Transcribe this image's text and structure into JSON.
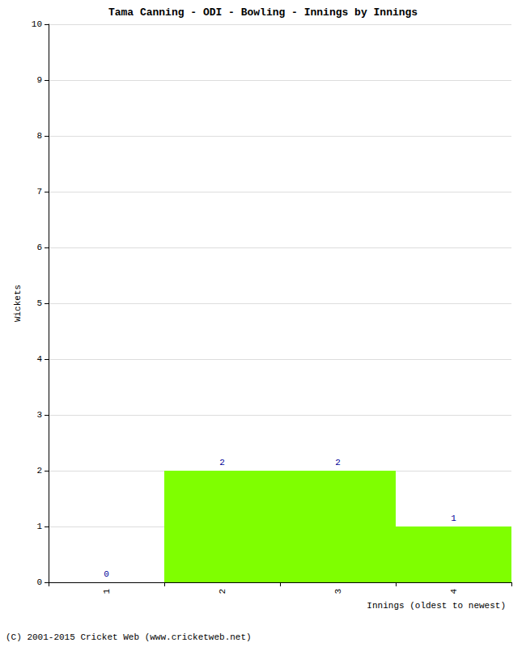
{
  "chart_data": {
    "type": "bar",
    "title": "Tama Canning - ODI - Bowling - Innings by Innings",
    "x_label": "Innings (oldest to newest)",
    "y_label": "Wickets",
    "categories": [
      "1",
      "2",
      "3",
      "4"
    ],
    "values": [
      0,
      2,
      2,
      1
    ],
    "color": "#7fff00",
    "ylim": [
      0,
      10
    ],
    "yticks": [
      0,
      1,
      2,
      3,
      4,
      5,
      6,
      7,
      8,
      9,
      10
    ],
    "grid": true,
    "data_labels": true,
    "annotations": [
      "(C) 2001-2015 Cricket Web (www.cricketweb.net)"
    ]
  }
}
